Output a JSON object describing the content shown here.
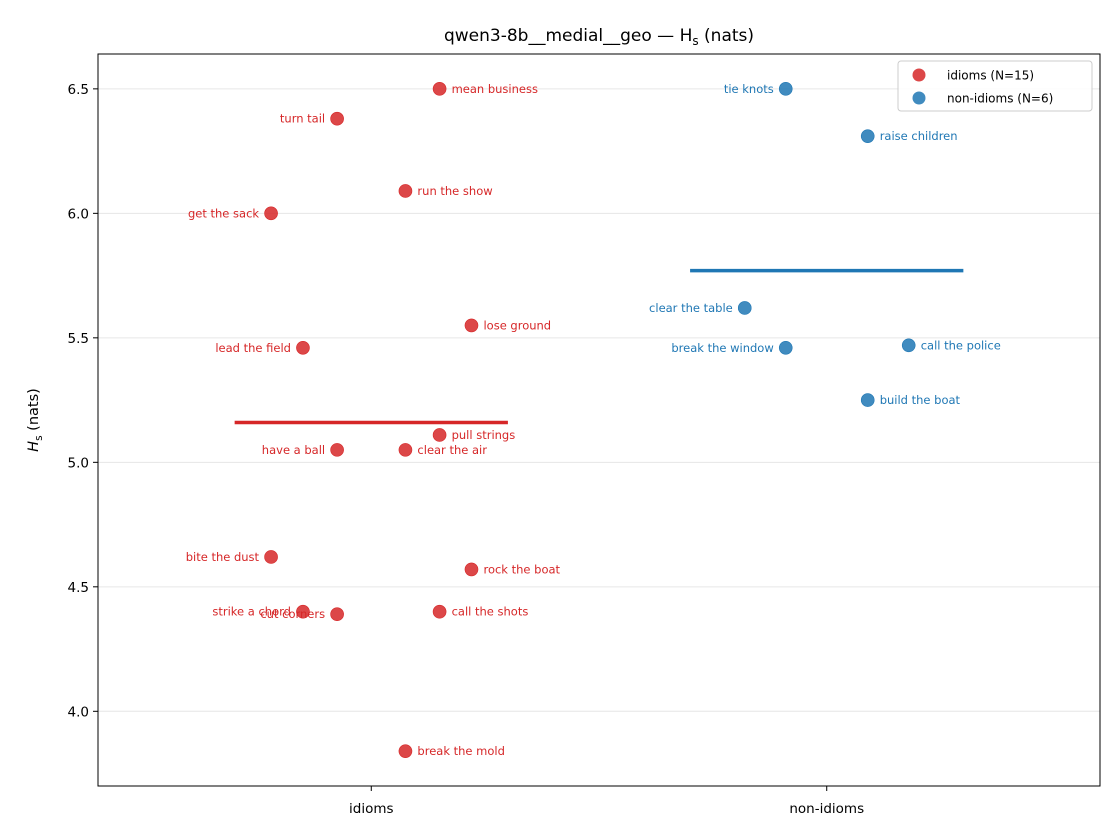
{
  "chart_data": {
    "type": "scatter",
    "title": "qwen3-8b__medial__geo — H",
    "title_sub": "s",
    "title_suffix": " (nats)",
    "ylabel": "H",
    "ylabel_sub": "s",
    "ylabel_suffix": " (nats)",
    "categories": [
      "idioms",
      "non-idioms"
    ],
    "ylim": [
      3.7,
      6.64
    ],
    "yticks": [
      4.0,
      4.5,
      5.0,
      5.5,
      6.0,
      6.5
    ],
    "grid": "horizontal",
    "legend_position": "top-right",
    "series": [
      {
        "name": "idioms (N=15)",
        "category": "idioms",
        "color": "#d62728",
        "mean": 5.16,
        "points": [
          {
            "label": "mean business",
            "x": 0.15,
            "y": 6.5,
            "side": "right"
          },
          {
            "label": "turn tail",
            "x": -0.075,
            "y": 6.38,
            "side": "left"
          },
          {
            "label": "run the show",
            "x": 0.075,
            "y": 6.09,
            "side": "right"
          },
          {
            "label": "get the sack",
            "x": -0.22,
            "y": 6.0,
            "side": "left"
          },
          {
            "label": "lose ground",
            "x": 0.22,
            "y": 5.55,
            "side": "right"
          },
          {
            "label": "lead the field",
            "x": -0.15,
            "y": 5.46,
            "side": "left"
          },
          {
            "label": "pull strings",
            "x": 0.15,
            "y": 5.11,
            "side": "right"
          },
          {
            "label": "have a ball",
            "x": -0.075,
            "y": 5.05,
            "side": "left"
          },
          {
            "label": "clear the air",
            "x": 0.075,
            "y": 5.05,
            "side": "right"
          },
          {
            "label": "bite the dust",
            "x": -0.22,
            "y": 4.62,
            "side": "left"
          },
          {
            "label": "rock the boat",
            "x": 0.22,
            "y": 4.57,
            "side": "right"
          },
          {
            "label": "strike a chord",
            "x": -0.15,
            "y": 4.4,
            "side": "left"
          },
          {
            "label": "cut corners",
            "x": -0.075,
            "y": 4.39,
            "side": "left"
          },
          {
            "label": "call the shots",
            "x": 0.15,
            "y": 4.4,
            "side": "right"
          },
          {
            "label": "break the mold",
            "x": 0.075,
            "y": 3.84,
            "side": "right"
          }
        ]
      },
      {
        "name": "non-idioms (N=6)",
        "category": "non-idioms",
        "color": "#1f77b4",
        "mean": 5.77,
        "points": [
          {
            "label": "tie knots",
            "x": -0.09,
            "y": 6.5,
            "side": "left"
          },
          {
            "label": "raise children",
            "x": 0.09,
            "y": 6.31,
            "side": "right"
          },
          {
            "label": "clear the table",
            "x": -0.18,
            "y": 5.62,
            "side": "left"
          },
          {
            "label": "break the window",
            "x": -0.09,
            "y": 5.46,
            "side": "left"
          },
          {
            "label": "call the police",
            "x": 0.18,
            "y": 5.47,
            "side": "right"
          },
          {
            "label": "build the boat",
            "x": 0.09,
            "y": 5.25,
            "side": "right"
          }
        ]
      }
    ]
  }
}
